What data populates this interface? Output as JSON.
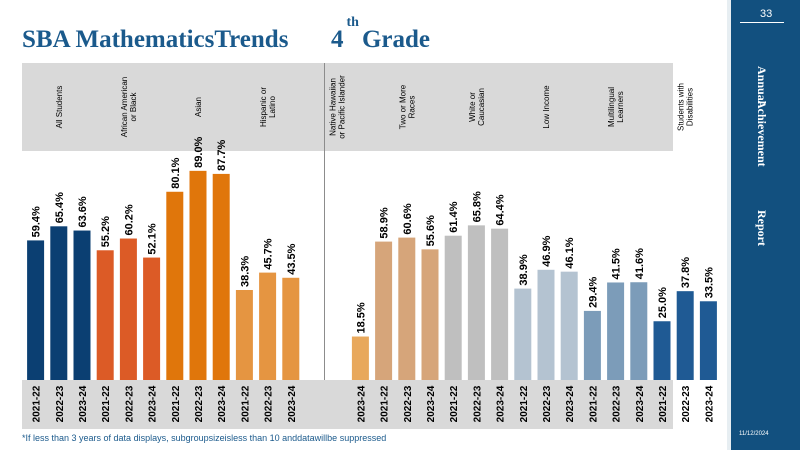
{
  "header": {
    "title_part1": "SBA MathematicsTrends",
    "title_part2_num": "4",
    "title_part2_sup": "th",
    "title_part2_word": "Grade"
  },
  "sidebar": {
    "page_number": "33",
    "words": [
      "Annual",
      "Achievement",
      "Report"
    ],
    "date": "11/12/2024"
  },
  "footnote": "*If less than 3 years of data displays, subgroupsizeisless than 10 anddatawillbe suppressed",
  "colors": {
    "all_students": "#0b3f72",
    "african_american": "#dc5b26",
    "asian": "#e0760b",
    "hispanic": "#e59541",
    "native_hawaiian": "#e8a85c",
    "two_or_more": "#d6a57a",
    "white": "#bfbfbf",
    "low_income": "#b4c3d1",
    "multilingual": "#7c9cb9",
    "disabilities": "#1f5a94",
    "sidebar": "#12507f",
    "title": "#1b5a8c"
  },
  "chart_data": {
    "type": "bar",
    "groups": [
      {
        "name": "All Students",
        "lines": [
          "All Students"
        ],
        "color": "#0b3f72",
        "years": [
          "2021-22",
          "2022-23",
          "2023-24"
        ],
        "values": [
          59.4,
          65.4,
          63.6
        ],
        "labels": [
          "59.4%",
          "65.4%",
          "63.6%"
        ]
      },
      {
        "name": "African American or Black",
        "lines": [
          "African American",
          "or Black"
        ],
        "color": "#dc5b26",
        "years": [
          "2021-22",
          "2022-23",
          "2023-24"
        ],
        "values": [
          55.2,
          60.2,
          52.1
        ],
        "labels": [
          "55.2%",
          "60.2%",
          "52.1%"
        ]
      },
      {
        "name": "Asian",
        "lines": [
          "Asian"
        ],
        "color": "#e0760b",
        "years": [
          "2021-22",
          "2022-23",
          "2023-24"
        ],
        "values": [
          80.1,
          89.0,
          87.7
        ],
        "labels": [
          "80.1%",
          "89.0%",
          "87.7%"
        ]
      },
      {
        "name": "Hispanic or Latino",
        "lines": [
          "Hispanic or",
          "Latino"
        ],
        "color": "#e59541",
        "years": [
          "2021-22",
          "2022-23",
          "2023-24"
        ],
        "values": [
          38.3,
          45.7,
          43.5
        ],
        "labels": [
          "38.3%",
          "45.7%",
          "43.5%"
        ]
      },
      {
        "name": "Native Hawaiian or Pacific Islander",
        "lines": [
          "Native Hawaiian",
          "or Pacific Islander"
        ],
        "color": "#e8a85c",
        "years": [
          "2023-24"
        ],
        "values": [
          18.5
        ],
        "labels": [
          "18.5%"
        ]
      },
      {
        "name": "Two or More Races",
        "lines": [
          "Two or More",
          "Races"
        ],
        "color": "#d6a57a",
        "years": [
          "2021-22",
          "2022-23",
          "2023-24"
        ],
        "values": [
          58.9,
          60.6,
          55.6
        ],
        "labels": [
          "58.9%",
          "60.6%",
          "55.6%"
        ]
      },
      {
        "name": "White or Caucasian",
        "lines": [
          "White or",
          "Caucasian"
        ],
        "color": "#bfbfbf",
        "years": [
          "2021-22",
          "2022-23",
          "2023-24"
        ],
        "values": [
          61.4,
          65.8,
          64.4
        ],
        "labels": [
          "61.4%",
          "65.8%",
          "64.4%"
        ]
      },
      {
        "name": "Low Income",
        "lines": [
          "Low Income"
        ],
        "color": "#b4c3d1",
        "years": [
          "2021-22",
          "2022-23",
          "2023-24"
        ],
        "values": [
          38.9,
          46.9,
          46.1
        ],
        "labels": [
          "38.9%",
          "46.9%",
          "46.1%"
        ]
      },
      {
        "name": "Multilingual Learners",
        "lines": [
          "Multilingual",
          "Learners"
        ],
        "color": "#7c9cb9",
        "years": [
          "2021-22",
          "2022-23",
          "2023-24"
        ],
        "values": [
          29.4,
          41.5,
          41.6
        ],
        "labels": [
          "29.4%",
          "41.5%",
          "41.6%"
        ]
      },
      {
        "name": "Students with Disabilities",
        "lines": [
          "Students with",
          "Disabilities"
        ],
        "color": "#1f5a94",
        "years": [
          "2021-22",
          "2022-23",
          "2023-24"
        ],
        "values": [
          25.0,
          37.8,
          33.5
        ],
        "labels": [
          "25.0%",
          "37.8%",
          "33.5%"
        ]
      }
    ],
    "ylim": [
      0,
      100
    ],
    "grid": false,
    "legend": "none"
  }
}
